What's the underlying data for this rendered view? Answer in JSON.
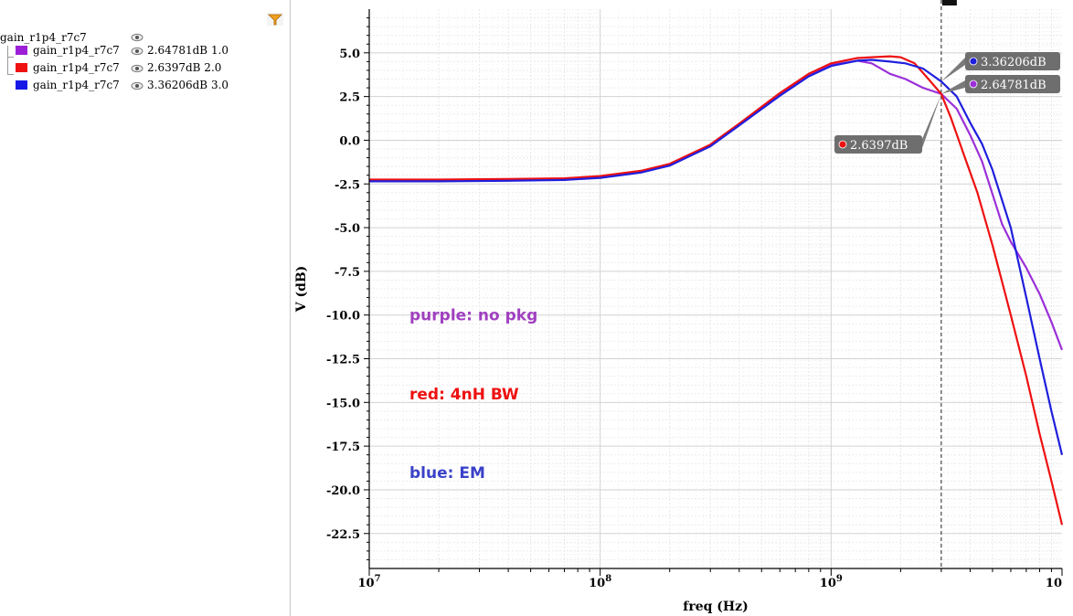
{
  "tree": {
    "root_label": "gain_r1p4_r7c7",
    "items": [
      {
        "label": "gain_r1p4_r7c7",
        "value": "2.64781dB",
        "param": "1.0",
        "color": "#9b1fd6"
      },
      {
        "label": "gain_r1p4_r7c7",
        "value": "2.6397dB",
        "param": "2.0",
        "color": "#ee1111"
      },
      {
        "label": "gain_r1p4_r7c7",
        "value": "3.36206dB",
        "param": "3.0",
        "color": "#1818e6"
      }
    ]
  },
  "chart_data": {
    "type": "line",
    "xscale": "log",
    "xlim": [
      10000000,
      10000000000
    ],
    "ylim": [
      -24.5,
      7.5
    ],
    "xlabel": "freq (Hz)",
    "ylabel": "V (dB)",
    "x_ticks": [
      {
        "value": 10000000,
        "base": "10",
        "exp": "7"
      },
      {
        "value": 100000000,
        "base": "10",
        "exp": "8"
      },
      {
        "value": 1000000000,
        "base": "10",
        "exp": "9"
      },
      {
        "value": 10000000000,
        "base": "10",
        "exp": ""
      }
    ],
    "y_ticks": [
      "5.0",
      "2.5",
      "0.0",
      "-2.5",
      "-5.0",
      "-7.5",
      "-10.0",
      "-12.5",
      "-15.0",
      "-17.5",
      "-20.0",
      "-22.5"
    ],
    "grid": true,
    "cursor_x": 3000000000,
    "series": [
      {
        "name": "1.0",
        "color": "#9b30d9",
        "x": [
          10000000,
          20000000,
          40000000,
          70000000,
          100000000,
          150000000,
          200000000,
          300000000,
          400000000,
          600000000,
          800000000,
          1000000000,
          1300000000,
          1500000000,
          1800000000,
          2100000000,
          2500000000,
          3000000000,
          3500000000,
          4000000000,
          4500000000,
          5500000000,
          6000000000,
          7000000000,
          8000000000,
          9000000000,
          10000000000
        ],
        "y": [
          -2.3,
          -2.3,
          -2.28,
          -2.22,
          -2.1,
          -1.8,
          -1.4,
          -0.3,
          0.9,
          2.6,
          3.7,
          4.3,
          4.55,
          4.4,
          3.8,
          3.5,
          3.0,
          2.65,
          1.8,
          0.3,
          -1.2,
          -4.8,
          -5.8,
          -7.3,
          -8.8,
          -10.4,
          -12.0
        ]
      },
      {
        "name": "2.0",
        "color": "#ee1111",
        "x": [
          10000000,
          20000000,
          40000000,
          70000000,
          100000000,
          150000000,
          200000000,
          300000000,
          400000000,
          600000000,
          800000000,
          1000000000,
          1300000000,
          1500000000,
          1800000000,
          2000000000,
          2300000000,
          2600000000,
          3000000000,
          3300000000,
          3800000000,
          4300000000,
          5000000000,
          6000000000,
          7000000000,
          8000000000,
          9000000000,
          10000000000
        ],
        "y": [
          -2.25,
          -2.25,
          -2.22,
          -2.18,
          -2.05,
          -1.75,
          -1.35,
          -0.25,
          0.95,
          2.7,
          3.8,
          4.4,
          4.7,
          4.75,
          4.8,
          4.75,
          4.4,
          3.6,
          2.64,
          1.3,
          -1.0,
          -3.0,
          -6.0,
          -10.0,
          -13.5,
          -16.8,
          -19.5,
          -22.0
        ]
      },
      {
        "name": "3.0",
        "color": "#1f1fdd",
        "x": [
          10000000,
          20000000,
          40000000,
          70000000,
          100000000,
          150000000,
          200000000,
          300000000,
          400000000,
          600000000,
          800000000,
          1000000000,
          1300000000,
          1500000000,
          1800000000,
          2100000000,
          2500000000,
          3000000000,
          3500000000,
          4000000000,
          4500000000,
          5000000000,
          6000000000,
          7000000000,
          8000000000,
          9000000000,
          10000000000
        ],
        "y": [
          -2.35,
          -2.35,
          -2.32,
          -2.27,
          -2.15,
          -1.85,
          -1.45,
          -0.35,
          0.85,
          2.55,
          3.65,
          4.25,
          4.55,
          4.6,
          4.5,
          4.4,
          4.1,
          3.36,
          2.5,
          1.0,
          -0.2,
          -1.7,
          -5.0,
          -9.0,
          -12.5,
          -15.5,
          -18.0
        ]
      }
    ],
    "annotations": [
      {
        "text": "purple: no pkg",
        "color": "#a040c0"
      },
      {
        "text": "red: 4nH BW",
        "color": "#ee1111"
      },
      {
        "text": "blue: EM",
        "color": "#3a42c8"
      }
    ],
    "markers": [
      {
        "label": "3.36206dB",
        "dot_color": "#1f1fdd"
      },
      {
        "label": "2.64781dB",
        "dot_color": "#9b30d9"
      },
      {
        "label": "2.6397dB",
        "dot_color": "#ee1111"
      }
    ]
  }
}
